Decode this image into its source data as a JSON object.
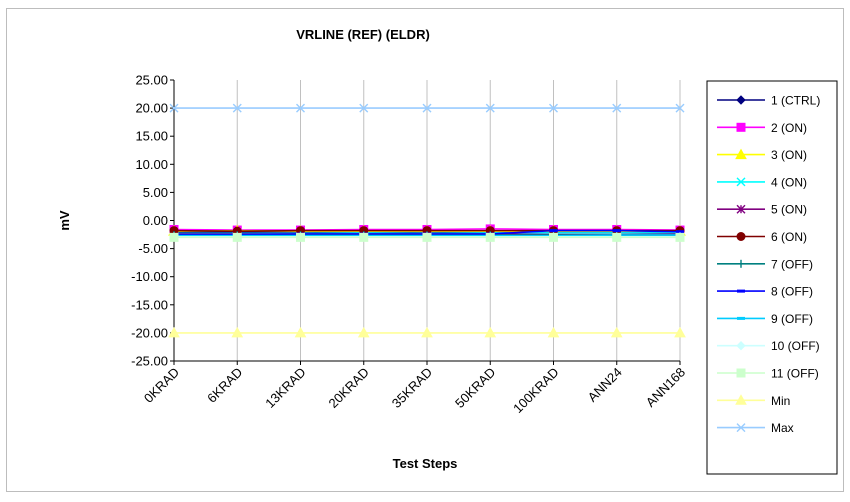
{
  "chart_data": {
    "type": "line",
    "title": "VRLINE (REF) (ELDR)",
    "xlabel": "Test Steps",
    "ylabel": "mV",
    "ylim": [
      -25,
      25
    ],
    "yticks": [
      25,
      20,
      15,
      10,
      5,
      0,
      -5,
      -10,
      -15,
      -20,
      -25
    ],
    "ytick_labels": [
      "25.00",
      "20.00",
      "15.00",
      "10.00",
      "5.00",
      "0.00",
      "-5.00",
      "-10.00",
      "-15.00",
      "-20.00",
      "-25.00"
    ],
    "categories": [
      "0KRAD",
      "6KRAD",
      "13KRAD",
      "20KRAD",
      "35KRAD",
      "50KRAD",
      "100KRAD",
      "ANN24",
      "ANN168"
    ],
    "grid": "vertical",
    "legend_position": "right",
    "series": [
      {
        "name": "1 (CTRL)",
        "color": "#000080",
        "marker": "diamond",
        "values": [
          -2.1,
          -2.1,
          -2.0,
          -2.0,
          -2.0,
          -2.0,
          -2.0,
          -2.0,
          -2.0
        ]
      },
      {
        "name": "2 (ON)",
        "color": "#ff00ff",
        "marker": "square",
        "values": [
          -1.6,
          -1.7,
          -1.7,
          -1.6,
          -1.6,
          -1.5,
          -1.6,
          -1.6,
          -1.7
        ]
      },
      {
        "name": "3 (ON)",
        "color": "#ffff00",
        "marker": "triangle",
        "values": [
          -1.9,
          -1.8,
          -1.9,
          -1.9,
          -1.9,
          -1.9,
          -1.9,
          -1.9,
          -1.9
        ]
      },
      {
        "name": "4 (ON)",
        "color": "#00ffff",
        "marker": "x",
        "values": [
          -2.3,
          -2.3,
          -2.3,
          -2.2,
          -2.3,
          -2.2,
          -2.2,
          -2.2,
          -2.2
        ]
      },
      {
        "name": "5 (ON)",
        "color": "#800080",
        "marker": "star",
        "values": [
          -2.4,
          -2.4,
          -2.4,
          -2.4,
          -2.4,
          -2.4,
          -2.5,
          -2.5,
          -2.4
        ]
      },
      {
        "name": "6 (ON)",
        "color": "#800000",
        "marker": "circle",
        "values": [
          -1.8,
          -1.9,
          -1.8,
          -1.8,
          -1.8,
          -1.8,
          -1.8,
          -1.8,
          -1.8
        ]
      },
      {
        "name": "7 (OFF)",
        "color": "#008080",
        "marker": "plus",
        "values": [
          -2.6,
          -2.6,
          -2.6,
          -2.6,
          -2.6,
          -2.6,
          -2.6,
          -2.6,
          -2.6
        ]
      },
      {
        "name": "8 (OFF)",
        "color": "#0000ff",
        "marker": "dash",
        "values": [
          -2.5,
          -2.5,
          -2.4,
          -2.4,
          -2.4,
          -2.4,
          -1.8,
          -1.8,
          -2.0
        ]
      },
      {
        "name": "9 (OFF)",
        "color": "#00ccff",
        "marker": "dash",
        "values": [
          -2.7,
          -2.7,
          -2.7,
          -2.7,
          -2.7,
          -2.7,
          -2.7,
          -2.6,
          -2.6
        ]
      },
      {
        "name": "10 (OFF)",
        "color": "#ccffff",
        "marker": "diamond",
        "values": [
          -2.9,
          -2.9,
          -2.9,
          -2.9,
          -2.9,
          -2.9,
          -2.9,
          -2.9,
          -2.9
        ]
      },
      {
        "name": "11 (OFF)",
        "color": "#ccffcc",
        "marker": "square",
        "values": [
          -3.0,
          -3.0,
          -3.0,
          -3.0,
          -3.0,
          -3.0,
          -3.0,
          -3.0,
          -3.0
        ]
      },
      {
        "name": "Min",
        "color": "#ffff99",
        "marker": "triangle",
        "values": [
          -20,
          -20,
          -20,
          -20,
          -20,
          -20,
          -20,
          -20,
          -20
        ]
      },
      {
        "name": "Max",
        "color": "#99ccff",
        "marker": "x",
        "values": [
          20,
          20,
          20,
          20,
          20,
          20,
          20,
          20,
          20
        ]
      }
    ]
  }
}
